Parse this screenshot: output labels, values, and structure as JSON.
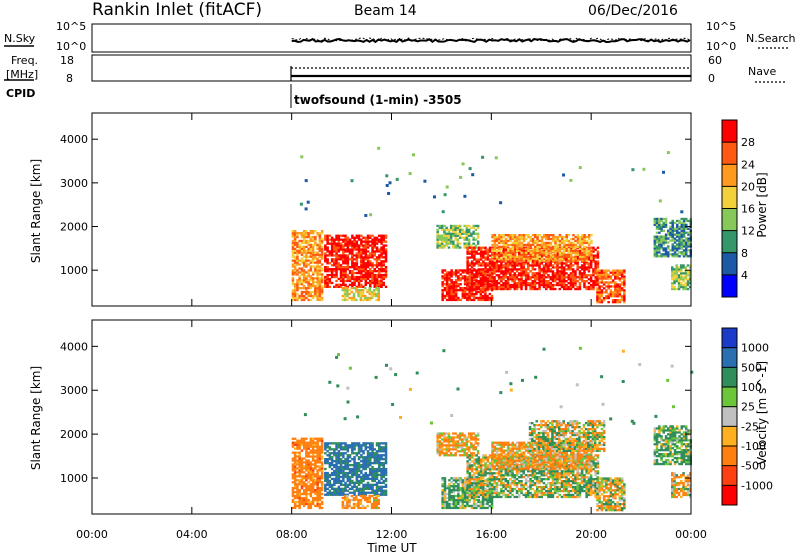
{
  "header": {
    "station": "Rankin Inlet (fitACF)",
    "beam": "Beam 14",
    "date": "06/Dec/2016"
  },
  "panels": {
    "nsky": {
      "label": "N.Sky",
      "ticks": [
        "10^5",
        "10^0"
      ],
      "right_label": "N.Search",
      "right_ticks": [
        "10^5",
        "10^0"
      ]
    },
    "freq": {
      "label_line1": "Freq.",
      "label_line2": "[MHz]",
      "ticks": [
        "18",
        "8"
      ],
      "right_label": "Nave",
      "right_ticks": [
        "60",
        "0"
      ]
    },
    "cpid": {
      "label": "CPID",
      "program": "twofsound (1-min) -3505"
    }
  },
  "axes": {
    "ylabel": "Slant Range [km]",
    "xlabel": "Time UT",
    "yticks": [
      "1000",
      "2000",
      "3000",
      "4000"
    ],
    "xticks": [
      "00:00",
      "04:00",
      "08:00",
      "12:00",
      "16:00",
      "20:00",
      "00:00"
    ]
  },
  "power_colorbar": {
    "label": "Power [dB]",
    "ticks": [
      "4",
      "8",
      "12",
      "16",
      "20",
      "24",
      "28"
    ],
    "colors": [
      "#0000ff",
      "#1c5aa8",
      "#35966a",
      "#86c85a",
      "#f2d13d",
      "#ff9a1f",
      "#ff5a12",
      "#ff0000"
    ]
  },
  "velocity_colorbar": {
    "label": "Velocity [m s^-1]",
    "ticks": [
      "1000",
      "500",
      "100",
      "25",
      "-25",
      "-100",
      "-500",
      "-1000"
    ],
    "colors": [
      "#1a3cc8",
      "#2a6fb0",
      "#2f8e5a",
      "#6cc63a",
      "#c0c0c0",
      "#ffb020",
      "#ff8010",
      "#ff4010",
      "#ff0000"
    ]
  },
  "chart_data": {
    "type": "heatmap",
    "x_range_hours": [
      0,
      24
    ],
    "y_range_km": [
      180,
      4600
    ],
    "data_start_hour": 8,
    "power_regions": [
      {
        "t0": 8.0,
        "t1": 9.2,
        "r0": 300,
        "r1": 1900,
        "level": 5
      },
      {
        "t0": 9.3,
        "t1": 11.8,
        "r0": 600,
        "r1": 1800,
        "level": 7
      },
      {
        "t0": 10.0,
        "t1": 11.5,
        "r0": 300,
        "r1": 600,
        "level": 4
      },
      {
        "t0": 13.8,
        "t1": 15.5,
        "r0": 1500,
        "r1": 2000,
        "level": 3
      },
      {
        "t0": 14.0,
        "t1": 16.0,
        "r0": 300,
        "r1": 1000,
        "level": 7
      },
      {
        "t0": 15.0,
        "t1": 20.3,
        "r0": 550,
        "r1": 1500,
        "level": 7
      },
      {
        "t0": 16.0,
        "t1": 20.0,
        "r0": 1200,
        "r1": 1800,
        "level": 5
      },
      {
        "t0": 20.2,
        "t1": 21.3,
        "r0": 250,
        "r1": 1000,
        "level": 6
      },
      {
        "t0": 22.5,
        "t1": 24.0,
        "r0": 1300,
        "r1": 2200,
        "level": 2
      },
      {
        "t0": 23.2,
        "t1": 24.0,
        "r0": 550,
        "r1": 1100,
        "level": 3
      }
    ],
    "velocity_regions": [
      {
        "t0": 8.0,
        "t1": 9.2,
        "r0": 300,
        "r1": 1900,
        "vel": -300
      },
      {
        "t0": 9.3,
        "t1": 11.8,
        "r0": 600,
        "r1": 1800,
        "vel": 600
      },
      {
        "t0": 10.0,
        "t1": 11.5,
        "r0": 300,
        "r1": 600,
        "vel": -200
      },
      {
        "t0": 13.8,
        "t1": 15.5,
        "r0": 1500,
        "r1": 2000,
        "vel": -150
      },
      {
        "t0": 14.0,
        "t1": 16.0,
        "r0": 300,
        "r1": 1000,
        "vel": 150
      },
      {
        "t0": 15.0,
        "t1": 20.3,
        "r0": 550,
        "r1": 1500,
        "vel": 60
      },
      {
        "t0": 16.0,
        "t1": 20.0,
        "r0": 1200,
        "r1": 1800,
        "vel": -150
      },
      {
        "t0": 17.5,
        "t1": 20.5,
        "r0": 1600,
        "r1": 2300,
        "vel": 0
      },
      {
        "t0": 20.2,
        "t1": 21.3,
        "r0": 250,
        "r1": 1000,
        "vel": 0
      },
      {
        "t0": 22.5,
        "t1": 24.0,
        "r0": 1300,
        "r1": 2200,
        "vel": 150
      },
      {
        "t0": 23.2,
        "t1": 24.0,
        "r0": 550,
        "r1": 1100,
        "vel": -120
      }
    ]
  }
}
